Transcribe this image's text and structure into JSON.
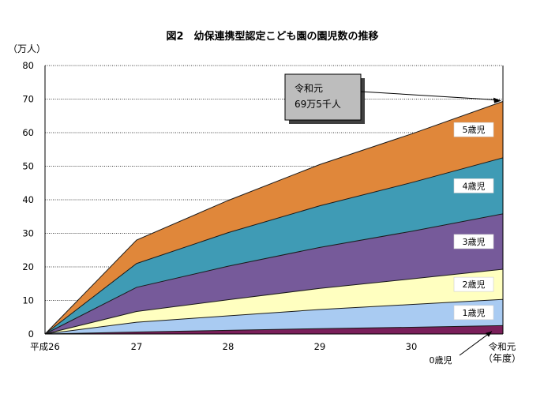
{
  "chart_data": {
    "type": "area",
    "stacked": true,
    "title": "図2　幼保連携型認定こども園の園児数の推移",
    "ylabel": "（万人）",
    "xlabel": "（年度）",
    "categories": [
      "平成26",
      "27",
      "28",
      "29",
      "30",
      "令和元"
    ],
    "ylim": [
      0,
      80
    ],
    "yticks": [
      0,
      10,
      20,
      30,
      40,
      50,
      60,
      70,
      80
    ],
    "grid": "horizontal-dotted",
    "series": [
      {
        "name": "0歳児",
        "color": "#7a1f5a",
        "values": [
          0,
          0.6,
          1.1,
          1.6,
          2.0,
          2.5
        ]
      },
      {
        "name": "1歳児",
        "color": "#a9cbf2",
        "values": [
          0,
          2.9,
          4.3,
          5.7,
          6.8,
          7.8
        ]
      },
      {
        "name": "2歳児",
        "color": "#ffffc0",
        "values": [
          0,
          3.2,
          4.8,
          6.3,
          7.6,
          9.0
        ]
      },
      {
        "name": "3歳児",
        "color": "#765a9a",
        "values": [
          0,
          7.2,
          10.0,
          12.2,
          14.2,
          16.5
        ]
      },
      {
        "name": "4歳児",
        "color": "#3f9bb5",
        "values": [
          0,
          7.1,
          10.0,
          12.4,
          14.5,
          16.7
        ]
      },
      {
        "name": "5歳児",
        "color": "#e0873a",
        "values": [
          0,
          7.0,
          9.6,
          12.3,
          14.5,
          16.8
        ]
      }
    ],
    "callout": {
      "line1": "令和元",
      "line2": "69万5千人",
      "target_value": 69.5
    },
    "legend_placement": "inline-right"
  }
}
